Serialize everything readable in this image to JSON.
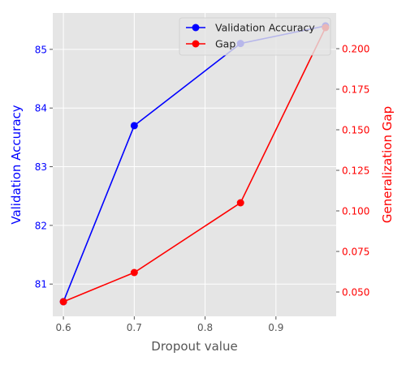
{
  "chart_data": {
    "type": "line",
    "xlabel": "Dropout value",
    "ylabel_left": "Validation Accuracy",
    "ylabel_right": "Generalization Gap",
    "xlim": [
      0.585,
      0.985
    ],
    "ylim_left": [
      80.45,
      85.62
    ],
    "ylim_right": [
      0.035,
      0.222
    ],
    "x_ticks": [
      0.6,
      0.7,
      0.8,
      0.9
    ],
    "x_tick_labels": [
      "0.6",
      "0.7",
      "0.8",
      "0.9"
    ],
    "y_left_ticks": [
      81,
      82,
      83,
      84,
      85
    ],
    "y_left_tick_labels": [
      "81",
      "82",
      "83",
      "84",
      "85"
    ],
    "y_right_ticks": [
      0.05,
      0.075,
      0.1,
      0.125,
      0.15,
      0.175,
      0.2
    ],
    "y_right_tick_labels": [
      "0.050",
      "0.075",
      "0.100",
      "0.125",
      "0.150",
      "0.175",
      "0.200"
    ],
    "grid": true,
    "legend_position": "top-right",
    "series": [
      {
        "name": "Validation Accuracy",
        "axis": "left",
        "color": "#0000ff",
        "x": [
          0.6,
          0.7,
          0.85,
          0.97
        ],
        "y": [
          80.7,
          83.7,
          85.1,
          85.4
        ]
      },
      {
        "name": "Gap",
        "axis": "right",
        "color": "#ff0000",
        "x": [
          0.6,
          0.7,
          0.85,
          0.97
        ],
        "y": [
          0.044,
          0.062,
          0.105,
          0.213
        ]
      }
    ]
  }
}
